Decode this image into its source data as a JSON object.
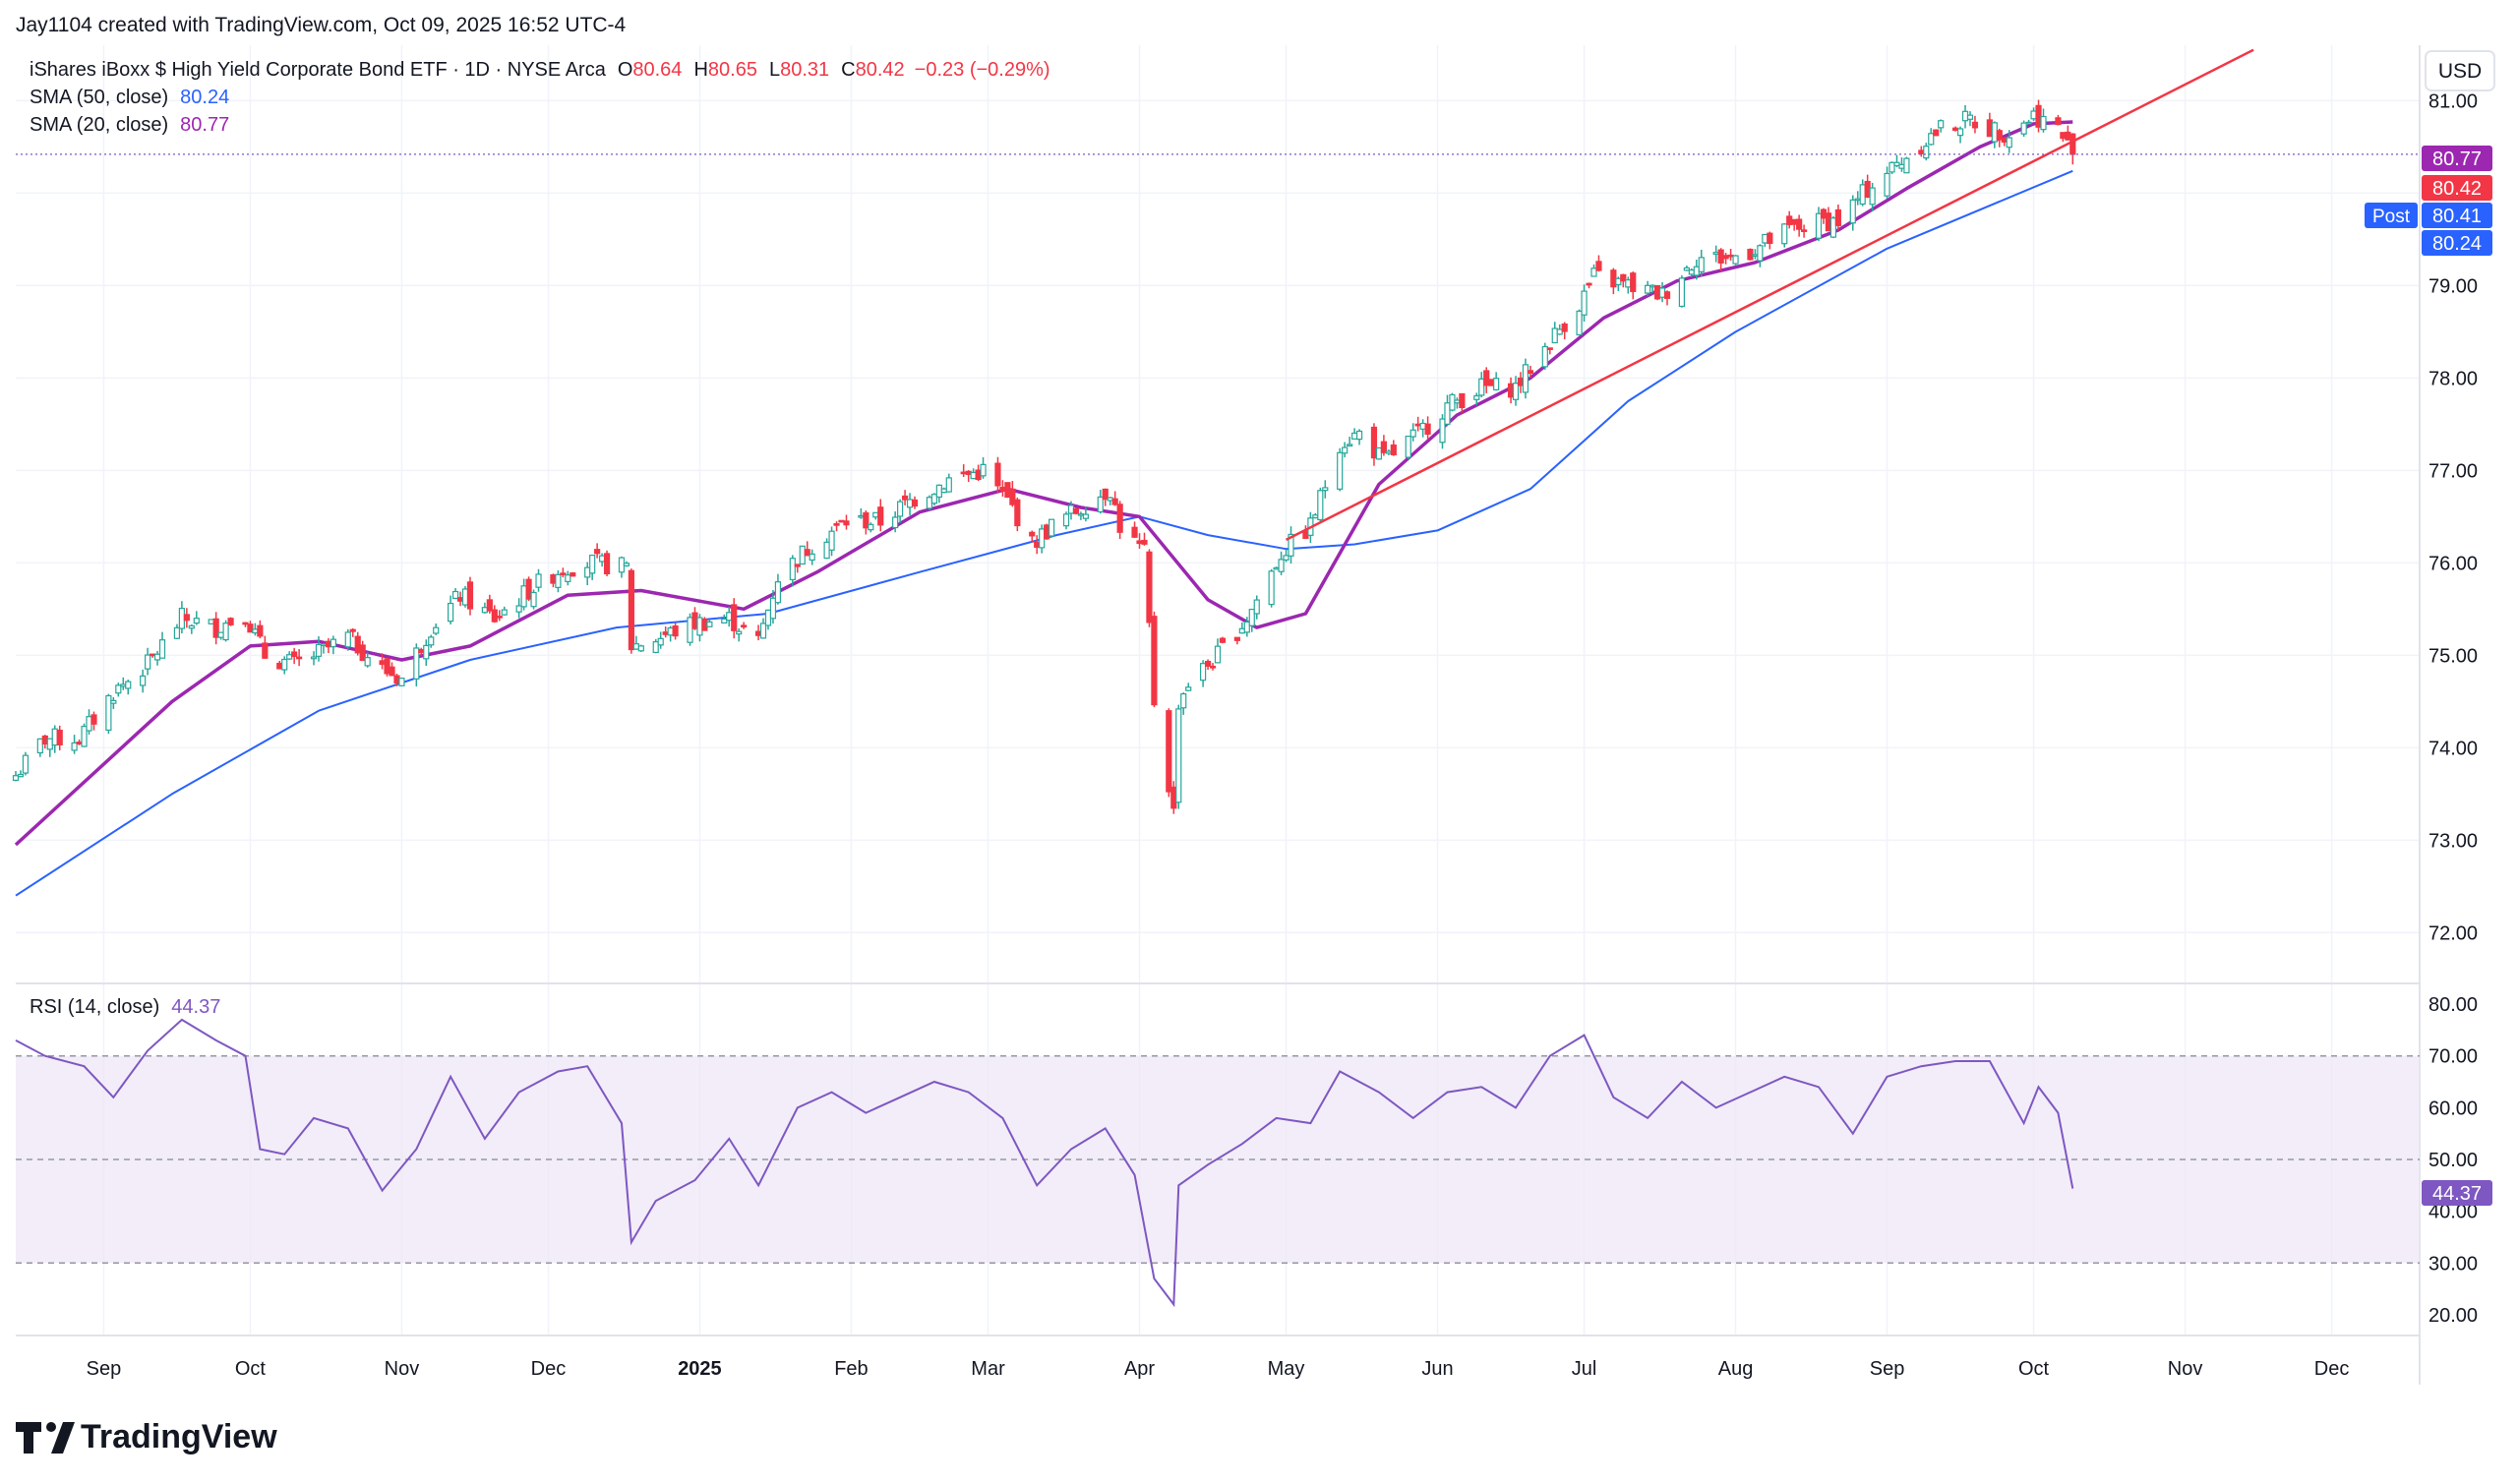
{
  "header": {
    "created_by": "Jay1104 created with TradingView.com, Oct 09, 2025 16:52 UTC-4",
    "currency": "USD"
  },
  "legend": {
    "symbol_title": "iShares iBoxx $ High Yield Corporate Bond ETF · 1D · NYSE Arca",
    "o_label": "O",
    "o_value": "80.64",
    "h_label": "H",
    "h_value": "80.65",
    "l_label": "L",
    "l_value": "80.31",
    "c_label": "C",
    "c_value": "80.42",
    "change": "−0.23 (−0.29%)",
    "sma50_label": "SMA (50, close)",
    "sma50_value": "80.24",
    "sma20_label": "SMA (20, close)",
    "sma20_value": "80.77",
    "rsi_label": "RSI (14, close)",
    "rsi_value": "44.37"
  },
  "badges": {
    "sma20": "80.77",
    "last": "80.42",
    "post_label": "Post",
    "post": "80.41",
    "sma50": "80.24",
    "rsi": "44.37"
  },
  "colors": {
    "up": "#26a69a",
    "down": "#f23645",
    "sma50": "#2962ff",
    "sma20": "#9c27b0",
    "trendline": "#f23645",
    "rsi": "#7e57c2",
    "rsi_band": "#ede7f6",
    "grid": "#f0f3fa"
  },
  "footer": {
    "brand": "TradingView",
    "logo_icon": "tradingview-logo-icon"
  },
  "chart_data": [
    {
      "type": "candlestick",
      "title": "iShares iBoxx $ High Yield Corporate Bond ETF",
      "x_labels": [
        "Sep",
        "Oct",
        "Nov",
        "Dec",
        "2025",
        "Feb",
        "Mar",
        "Apr",
        "May",
        "Jun",
        "Jul",
        "Aug",
        "Sep",
        "Oct",
        "Nov",
        "Dec"
      ],
      "x_label_dates": [
        "2024-09-01",
        "2024-10-01",
        "2024-11-01",
        "2024-12-01",
        "2025-01-01",
        "2025-02-01",
        "2025-03-01",
        "2025-04-01",
        "2025-05-01",
        "2025-06-01",
        "2025-07-01",
        "2025-08-01",
        "2025-09-01",
        "2025-10-01",
        "2025-11-01",
        "2025-12-01"
      ],
      "y_ticks": [
        "72.00",
        "73.00",
        "74.00",
        "75.00",
        "76.00",
        "77.00",
        "78.00",
        "79.00",
        "80.00",
        "81.00"
      ],
      "ylim": [
        71.45,
        81.6
      ],
      "xlim": [
        "2024-08-14",
        "2025-12-19"
      ],
      "grid": true,
      "close_anchors": [
        {
          "date": "2024-08-14",
          "close": 73.7
        },
        {
          "date": "2024-08-20",
          "close": 74.1
        },
        {
          "date": "2024-08-27",
          "close": 74.1
        },
        {
          "date": "2024-09-03",
          "close": 74.6
        },
        {
          "date": "2024-09-10",
          "close": 74.9
        },
        {
          "date": "2024-09-17",
          "close": 75.4
        },
        {
          "date": "2024-09-24",
          "close": 75.3
        },
        {
          "date": "2024-09-30",
          "close": 75.45
        },
        {
          "date": "2024-10-04",
          "close": 75.0
        },
        {
          "date": "2024-10-10",
          "close": 74.9
        },
        {
          "date": "2024-10-16",
          "close": 75.05
        },
        {
          "date": "2024-10-21",
          "close": 75.2
        },
        {
          "date": "2024-10-28",
          "close": 74.85
        },
        {
          "date": "2024-11-01",
          "close": 74.75
        },
        {
          "date": "2024-11-07",
          "close": 75.3
        },
        {
          "date": "2024-11-13",
          "close": 75.65
        },
        {
          "date": "2024-11-20",
          "close": 75.4
        },
        {
          "date": "2024-11-27",
          "close": 75.7
        },
        {
          "date": "2024-12-04",
          "close": 75.95
        },
        {
          "date": "2024-12-10",
          "close": 76.0
        },
        {
          "date": "2024-12-17",
          "close": 75.95
        },
        {
          "date": "2024-12-18",
          "close": 75.1
        },
        {
          "date": "2024-12-24",
          "close": 75.2
        },
        {
          "date": "2024-12-31",
          "close": 75.35
        },
        {
          "date": "2025-01-07",
          "close": 75.4
        },
        {
          "date": "2025-01-13",
          "close": 75.15
        },
        {
          "date": "2025-01-17",
          "close": 75.85
        },
        {
          "date": "2025-01-24",
          "close": 76.2
        },
        {
          "date": "2025-01-31",
          "close": 76.45
        },
        {
          "date": "2025-02-07",
          "close": 76.45
        },
        {
          "date": "2025-02-14",
          "close": 76.7
        },
        {
          "date": "2025-02-21",
          "close": 76.9
        },
        {
          "date": "2025-02-28",
          "close": 77.0
        },
        {
          "date": "2025-03-06",
          "close": 76.6
        },
        {
          "date": "2025-03-10",
          "close": 76.2
        },
        {
          "date": "2025-03-14",
          "close": 76.4
        },
        {
          "date": "2025-03-20",
          "close": 76.6
        },
        {
          "date": "2025-03-26",
          "close": 76.8
        },
        {
          "date": "2025-03-28",
          "close": 76.4
        },
        {
          "date": "2025-04-02",
          "close": 76.1
        },
        {
          "date": "2025-04-04",
          "close": 74.5
        },
        {
          "date": "2025-04-08",
          "close": 73.3
        },
        {
          "date": "2025-04-09",
          "close": 74.5
        },
        {
          "date": "2025-04-11",
          "close": 74.7
        },
        {
          "date": "2025-04-17",
          "close": 75.0
        },
        {
          "date": "2025-04-23",
          "close": 75.4
        },
        {
          "date": "2025-04-30",
          "close": 76.1
        },
        {
          "date": "2025-05-06",
          "close": 76.4
        },
        {
          "date": "2025-05-12",
          "close": 77.3
        },
        {
          "date": "2025-05-16",
          "close": 77.4
        },
        {
          "date": "2025-05-21",
          "close": 77.1
        },
        {
          "date": "2025-05-28",
          "close": 77.4
        },
        {
          "date": "2025-06-03",
          "close": 77.7
        },
        {
          "date": "2025-06-10",
          "close": 77.9
        },
        {
          "date": "2025-06-17",
          "close": 77.9
        },
        {
          "date": "2025-06-24",
          "close": 78.4
        },
        {
          "date": "2025-06-30",
          "close": 78.8
        },
        {
          "date": "2025-07-03",
          "close": 79.1
        },
        {
          "date": "2025-07-10",
          "close": 79.0
        },
        {
          "date": "2025-07-17",
          "close": 78.9
        },
        {
          "date": "2025-07-24",
          "close": 79.3
        },
        {
          "date": "2025-07-31",
          "close": 79.3
        },
        {
          "date": "2025-08-05",
          "close": 79.4
        },
        {
          "date": "2025-08-12",
          "close": 79.6
        },
        {
          "date": "2025-08-19",
          "close": 79.7
        },
        {
          "date": "2025-08-22",
          "close": 79.7
        },
        {
          "date": "2025-08-29",
          "close": 80.1
        },
        {
          "date": "2025-09-05",
          "close": 80.4
        },
        {
          "date": "2025-09-12",
          "close": 80.7
        },
        {
          "date": "2025-09-18",
          "close": 80.8
        },
        {
          "date": "2025-09-22",
          "close": 80.7
        },
        {
          "date": "2025-09-26",
          "close": 80.65
        },
        {
          "date": "2025-10-01",
          "close": 80.85
        },
        {
          "date": "2025-10-06",
          "close": 80.7
        },
        {
          "date": "2025-10-09",
          "close": 80.42
        }
      ],
      "last_candle": {
        "date": "2025-10-09",
        "open": 80.64,
        "high": 80.65,
        "low": 80.31,
        "close": 80.42
      },
      "series": [
        {
          "name": "SMA (50, close)",
          "color": "#2962ff",
          "points": [
            {
              "date": "2024-08-14",
              "value": 72.4
            },
            {
              "date": "2024-09-15",
              "value": 73.5
            },
            {
              "date": "2024-10-15",
              "value": 74.4
            },
            {
              "date": "2024-11-15",
              "value": 74.95
            },
            {
              "date": "2024-12-15",
              "value": 75.3
            },
            {
              "date": "2025-01-15",
              "value": 75.45
            },
            {
              "date": "2025-02-15",
              "value": 75.9
            },
            {
              "date": "2025-03-15",
              "value": 76.3
            },
            {
              "date": "2025-04-01",
              "value": 76.5
            },
            {
              "date": "2025-04-15",
              "value": 76.3
            },
            {
              "date": "2025-05-01",
              "value": 76.15
            },
            {
              "date": "2025-05-15",
              "value": 76.2
            },
            {
              "date": "2025-06-01",
              "value": 76.35
            },
            {
              "date": "2025-06-20",
              "value": 76.8
            },
            {
              "date": "2025-07-10",
              "value": 77.75
            },
            {
              "date": "2025-08-01",
              "value": 78.5
            },
            {
              "date": "2025-09-01",
              "value": 79.4
            },
            {
              "date": "2025-10-09",
              "value": 80.24
            }
          ]
        },
        {
          "name": "SMA (20, close)",
          "color": "#9c27b0",
          "points": [
            {
              "date": "2024-08-14",
              "value": 72.95
            },
            {
              "date": "2024-09-15",
              "value": 74.5
            },
            {
              "date": "2024-10-01",
              "value": 75.1
            },
            {
              "date": "2024-10-15",
              "value": 75.15
            },
            {
              "date": "2024-11-01",
              "value": 74.95
            },
            {
              "date": "2024-11-15",
              "value": 75.1
            },
            {
              "date": "2024-12-05",
              "value": 75.65
            },
            {
              "date": "2024-12-20",
              "value": 75.7
            },
            {
              "date": "2025-01-10",
              "value": 75.5
            },
            {
              "date": "2025-01-25",
              "value": 75.9
            },
            {
              "date": "2025-02-15",
              "value": 76.55
            },
            {
              "date": "2025-03-05",
              "value": 76.8
            },
            {
              "date": "2025-03-20",
              "value": 76.6
            },
            {
              "date": "2025-04-01",
              "value": 76.5
            },
            {
              "date": "2025-04-15",
              "value": 75.6
            },
            {
              "date": "2025-04-25",
              "value": 75.3
            },
            {
              "date": "2025-05-05",
              "value": 75.45
            },
            {
              "date": "2025-05-20",
              "value": 76.85
            },
            {
              "date": "2025-06-05",
              "value": 77.6
            },
            {
              "date": "2025-06-20",
              "value": 78.0
            },
            {
              "date": "2025-07-05",
              "value": 78.65
            },
            {
              "date": "2025-07-20",
              "value": 79.05
            },
            {
              "date": "2025-08-05",
              "value": 79.25
            },
            {
              "date": "2025-08-22",
              "value": 79.6
            },
            {
              "date": "2025-09-05",
              "value": 80.05
            },
            {
              "date": "2025-09-20",
              "value": 80.5
            },
            {
              "date": "2025-10-01",
              "value": 80.75
            },
            {
              "date": "2025-10-09",
              "value": 80.77
            }
          ]
        },
        {
          "name": "trendline",
          "color": "#f23645",
          "points": [
            {
              "date": "2025-05-01",
              "value": 76.25
            },
            {
              "date": "2025-11-15",
              "value": 81.55
            }
          ]
        }
      ],
      "annotations": [
        "Post 80.41"
      ]
    },
    {
      "type": "line",
      "title": "RSI (14, close)",
      "y_ticks": [
        "20.00",
        "30.00",
        "40.00",
        "50.00",
        "60.00",
        "70.00",
        "80.00"
      ],
      "ylim": [
        16,
        84
      ],
      "band": [
        30,
        70
      ],
      "midline": 50,
      "grid": true,
      "series": [
        {
          "name": "RSI (14, close)",
          "color": "#7e57c2",
          "points": [
            {
              "date": "2024-08-14",
              "value": 73
            },
            {
              "date": "2024-08-20",
              "value": 70
            },
            {
              "date": "2024-08-28",
              "value": 68
            },
            {
              "date": "2024-09-03",
              "value": 62
            },
            {
              "date": "2024-09-10",
              "value": 71
            },
            {
              "date": "2024-09-17",
              "value": 77
            },
            {
              "date": "2024-09-24",
              "value": 73
            },
            {
              "date": "2024-09-30",
              "value": 70
            },
            {
              "date": "2024-10-03",
              "value": 52
            },
            {
              "date": "2024-10-08",
              "value": 51
            },
            {
              "date": "2024-10-14",
              "value": 58
            },
            {
              "date": "2024-10-21",
              "value": 56
            },
            {
              "date": "2024-10-28",
              "value": 44
            },
            {
              "date": "2024-11-04",
              "value": 52
            },
            {
              "date": "2024-11-11",
              "value": 66
            },
            {
              "date": "2024-11-18",
              "value": 54
            },
            {
              "date": "2024-11-25",
              "value": 63
            },
            {
              "date": "2024-12-03",
              "value": 67
            },
            {
              "date": "2024-12-09",
              "value": 68
            },
            {
              "date": "2024-12-16",
              "value": 57
            },
            {
              "date": "2024-12-18",
              "value": 34
            },
            {
              "date": "2024-12-23",
              "value": 42
            },
            {
              "date": "2024-12-31",
              "value": 46
            },
            {
              "date": "2025-01-07",
              "value": 54
            },
            {
              "date": "2025-01-13",
              "value": 45
            },
            {
              "date": "2025-01-21",
              "value": 60
            },
            {
              "date": "2025-01-28",
              "value": 63
            },
            {
              "date": "2025-02-04",
              "value": 59
            },
            {
              "date": "2025-02-11",
              "value": 62
            },
            {
              "date": "2025-02-18",
              "value": 65
            },
            {
              "date": "2025-02-25",
              "value": 63
            },
            {
              "date": "2025-03-04",
              "value": 58
            },
            {
              "date": "2025-03-11",
              "value": 45
            },
            {
              "date": "2025-03-18",
              "value": 52
            },
            {
              "date": "2025-03-25",
              "value": 56
            },
            {
              "date": "2025-03-31",
              "value": 47
            },
            {
              "date": "2025-04-04",
              "value": 27
            },
            {
              "date": "2025-04-08",
              "value": 22
            },
            {
              "date": "2025-04-09",
              "value": 45
            },
            {
              "date": "2025-04-15",
              "value": 49
            },
            {
              "date": "2025-04-22",
              "value": 53
            },
            {
              "date": "2025-04-29",
              "value": 58
            },
            {
              "date": "2025-05-06",
              "value": 57
            },
            {
              "date": "2025-05-12",
              "value": 67
            },
            {
              "date": "2025-05-20",
              "value": 63
            },
            {
              "date": "2025-05-27",
              "value": 58
            },
            {
              "date": "2025-06-03",
              "value": 63
            },
            {
              "date": "2025-06-10",
              "value": 64
            },
            {
              "date": "2025-06-17",
              "value": 60
            },
            {
              "date": "2025-06-24",
              "value": 70
            },
            {
              "date": "2025-07-01",
              "value": 74
            },
            {
              "date": "2025-07-07",
              "value": 62
            },
            {
              "date": "2025-07-14",
              "value": 58
            },
            {
              "date": "2025-07-21",
              "value": 65
            },
            {
              "date": "2025-07-28",
              "value": 60
            },
            {
              "date": "2025-08-04",
              "value": 63
            },
            {
              "date": "2025-08-11",
              "value": 66
            },
            {
              "date": "2025-08-18",
              "value": 64
            },
            {
              "date": "2025-08-25",
              "value": 55
            },
            {
              "date": "2025-09-01",
              "value": 66
            },
            {
              "date": "2025-09-08",
              "value": 68
            },
            {
              "date": "2025-09-15",
              "value": 69
            },
            {
              "date": "2025-09-22",
              "value": 69
            },
            {
              "date": "2025-09-29",
              "value": 57
            },
            {
              "date": "2025-10-02",
              "value": 64
            },
            {
              "date": "2025-10-06",
              "value": 59
            },
            {
              "date": "2025-10-09",
              "value": 44.37
            }
          ]
        }
      ]
    }
  ]
}
